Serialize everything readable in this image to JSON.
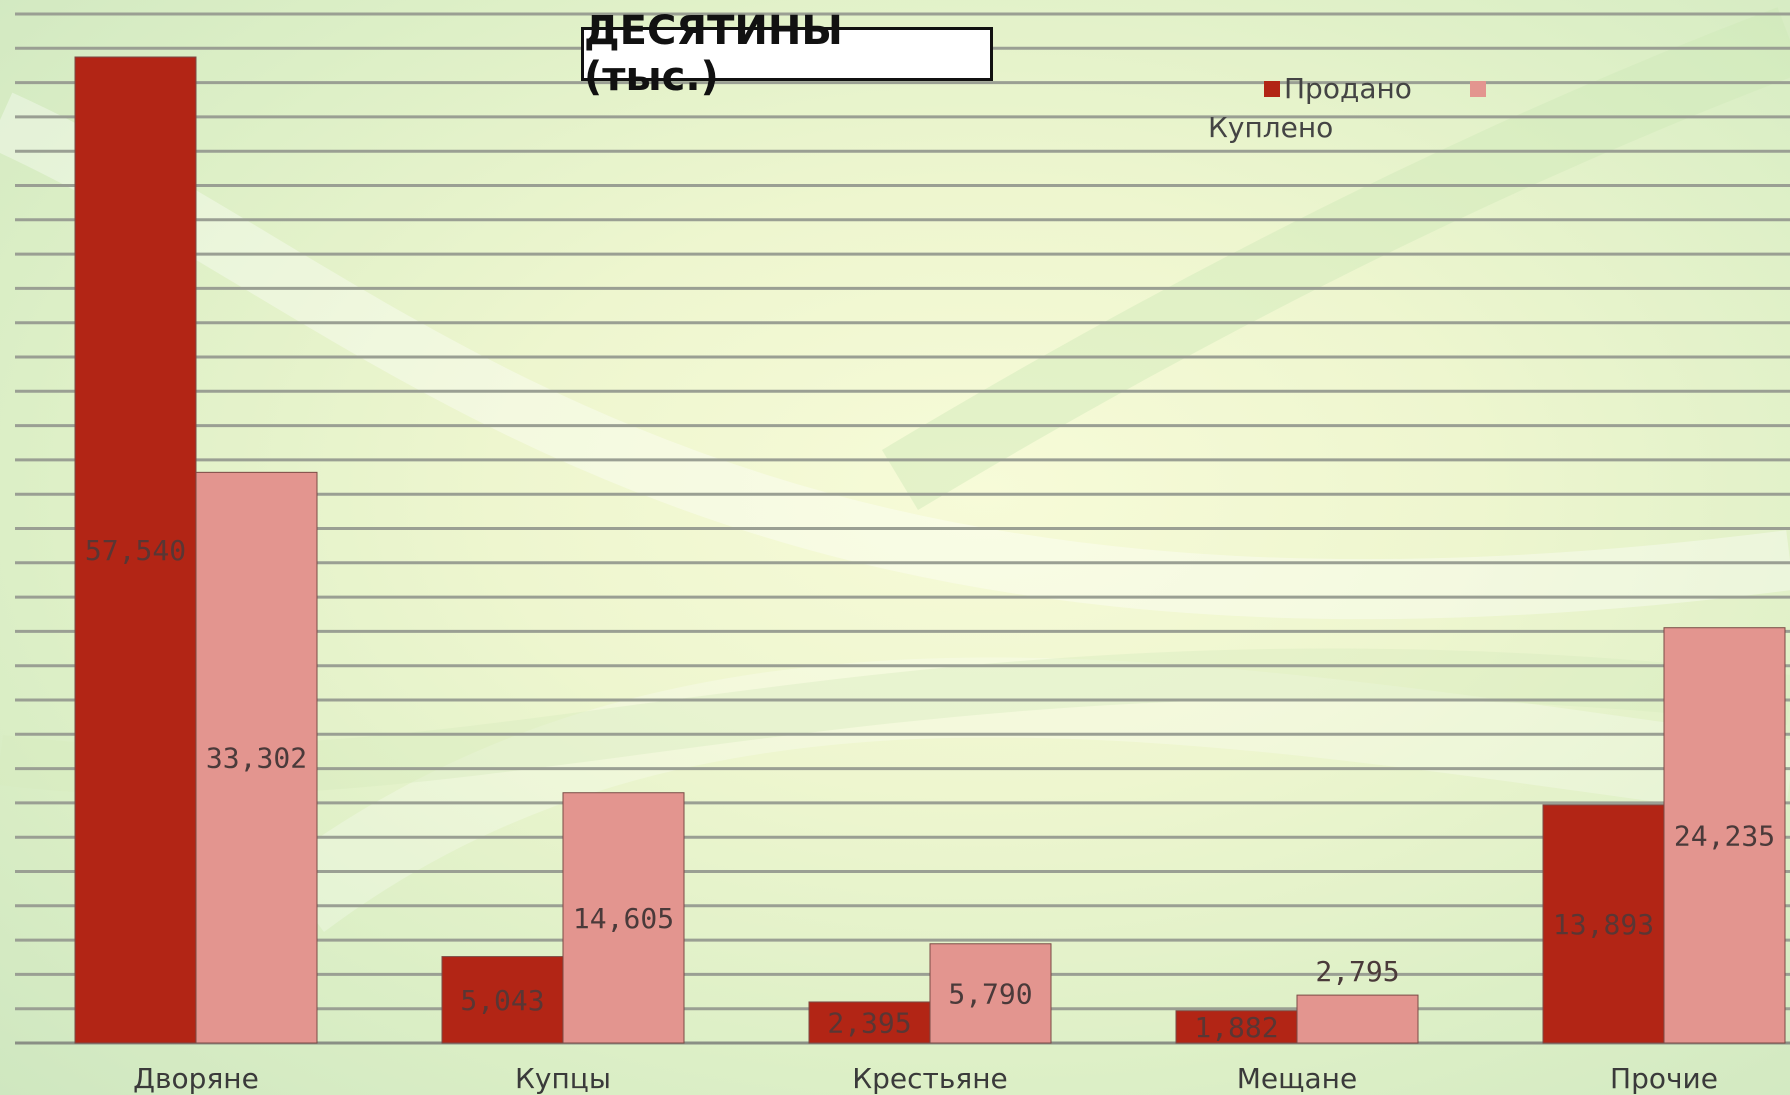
{
  "chart_data": {
    "type": "bar",
    "title": "ДЕСЯТИНЫ (тыс.)",
    "categories": [
      "Дворяне",
      "Купцы",
      "Крестьяне",
      "Мещане",
      "Прочие"
    ],
    "series": [
      {
        "name": "Продано",
        "values": [
          57.54,
          5.043,
          2.395,
          1.882,
          13.893
        ],
        "labels": [
          "57,540",
          "5,043",
          "2,395",
          "1,882",
          "13,893"
        ],
        "color": "#b22515"
      },
      {
        "name": "Куплено",
        "values": [
          33.302,
          14.605,
          5.79,
          2.795,
          24.235
        ],
        "labels": [
          "33,302",
          "14,605",
          "5,790",
          "2,795",
          "24,235"
        ],
        "color": "#e3958f"
      }
    ],
    "ylim": [
      0,
      60
    ],
    "grid": true,
    "legend_position": "top-right",
    "xlabel": "",
    "ylabel": ""
  }
}
